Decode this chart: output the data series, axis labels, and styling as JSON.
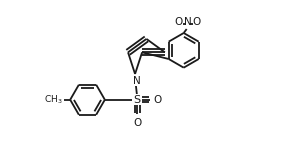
{
  "bg_color": "#ffffff",
  "line_color": "#1a1a1a",
  "lw": 1.3,
  "fig_width": 2.82,
  "fig_height": 1.44,
  "dpi": 100,
  "xlim": [
    0,
    2.82
  ],
  "ylim": [
    0,
    1.44
  ]
}
